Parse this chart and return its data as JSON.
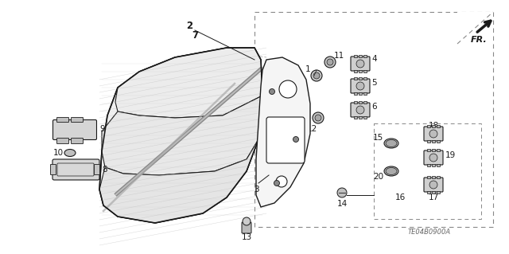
{
  "bg_color": "#ffffff",
  "line_color": "#1a1a1a",
  "gray_color": "#999999",
  "fig_width": 6.4,
  "fig_height": 3.19,
  "dpi": 100,
  "watermark": "TE04B0900A"
}
